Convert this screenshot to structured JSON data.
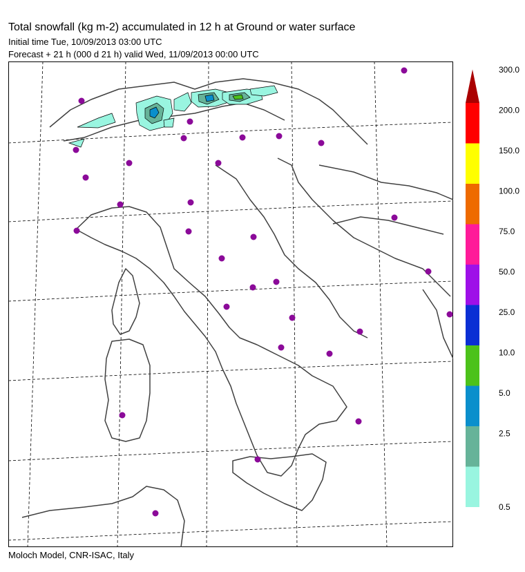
{
  "header": {
    "title": "Total snowfall (kg m-2) accumulated in  12 h at Ground or water surface",
    "initial_time": "Initial time  Tue, 10/09/2013  03:00 UTC",
    "forecast": "Forecast  +  21 h   (000 d 21 h)   valid Wed, 11/09/2013 00:00 UTC"
  },
  "footer": "Moloch Model, CNR-ISAC, Italy",
  "legend": {
    "levels": [
      {
        "label": "0.5",
        "color": "#99f5e0"
      },
      {
        "label": "2.5",
        "color": "#66b399"
      },
      {
        "label": "5.0",
        "color": "#0a8fcc"
      },
      {
        "label": "10.0",
        "color": "#4cc21a"
      },
      {
        "label": "25.0",
        "color": "#0a2fd4"
      },
      {
        "label": "50.0",
        "color": "#9e10e8"
      },
      {
        "label": "75.0",
        "color": "#ff1a99"
      },
      {
        "label": "100.0",
        "color": "#ee6a00"
      },
      {
        "label": "150.0",
        "color": "#ffff00"
      },
      {
        "label": "200.0",
        "color": "#ff0000"
      },
      {
        "label": "300.0",
        "color": "#aa0000"
      }
    ]
  },
  "colors": {
    "station_marker": "#8b0a99",
    "coastline": "#404040",
    "graticule": "#000000"
  }
}
